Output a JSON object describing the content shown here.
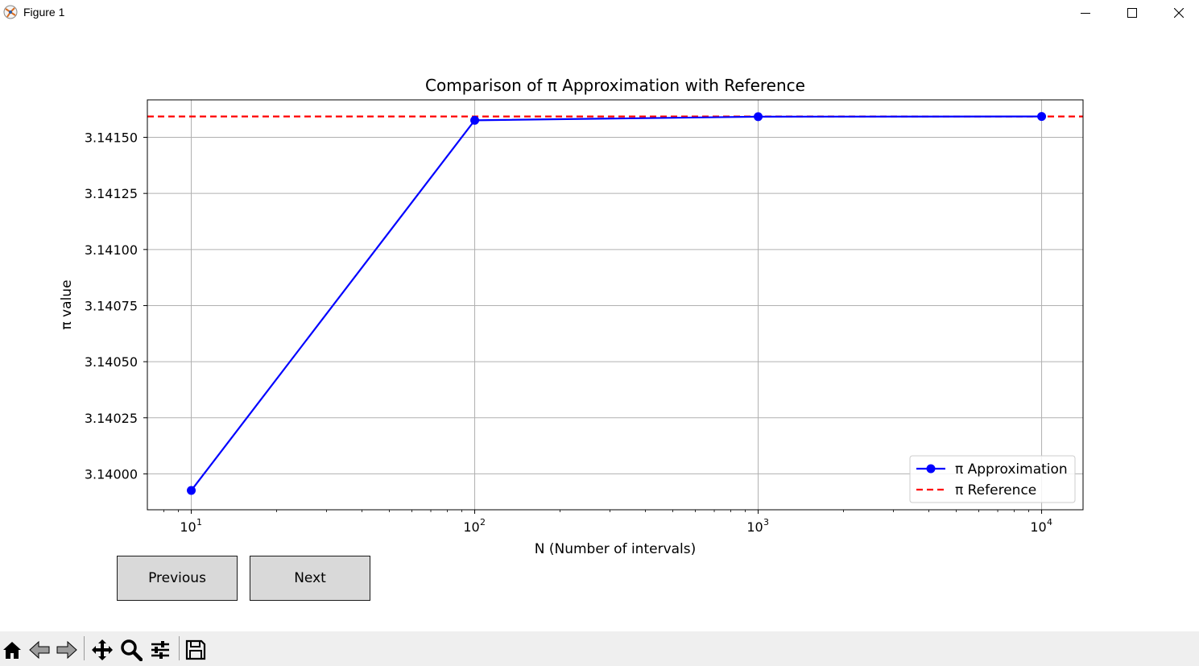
{
  "window": {
    "title": "Figure 1"
  },
  "buttons": {
    "previous": "Previous",
    "next": "Next"
  },
  "toolbar": {
    "icons": [
      "home-icon",
      "back-arrow-icon",
      "forward-arrow-icon",
      "pan-icon",
      "zoom-icon",
      "configure-subplots-icon",
      "save-icon"
    ]
  },
  "colors": {
    "approximation": "#0000ff",
    "reference": "#ff0000",
    "grid": "#b0b0b0"
  },
  "chart_data": {
    "type": "line",
    "title": "Comparison of π Approximation with Reference",
    "xlabel": "N (Number of intervals)",
    "ylabel": "π value",
    "xscale": "log",
    "xlim": [
      7,
      14000
    ],
    "ylim": [
      3.13984,
      3.141667
    ],
    "x_ticks": [
      10,
      100,
      1000,
      10000
    ],
    "x_tick_labels": [
      {
        "base": "10",
        "exp": "1"
      },
      {
        "base": "10",
        "exp": "2"
      },
      {
        "base": "10",
        "exp": "3"
      },
      {
        "base": "10",
        "exp": "4"
      }
    ],
    "y_ticks": [
      3.14,
      3.14025,
      3.1405,
      3.14075,
      3.141,
      3.14125,
      3.1415
    ],
    "y_tick_labels": [
      "3.14000",
      "3.14025",
      "3.14050",
      "3.14075",
      "3.14100",
      "3.14125",
      "3.14150"
    ],
    "grid": true,
    "legend": "lower right",
    "series": [
      {
        "name": "π Approximation",
        "style": "solid-marker",
        "color": "#0000ff",
        "x": [
          10,
          100,
          1000,
          10000
        ],
        "y": [
          3.139926,
          3.141576,
          3.141592,
          3.141593
        ]
      },
      {
        "name": "π Reference",
        "style": "dashed",
        "color": "#ff0000",
        "y_constant": 3.141593
      }
    ]
  }
}
